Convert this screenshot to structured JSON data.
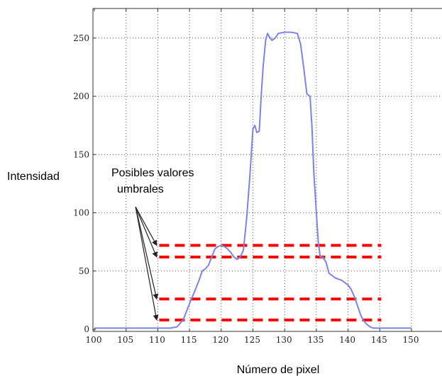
{
  "chart_data": {
    "type": "line",
    "title": "",
    "xlabel": "Número de pixel",
    "ylabel": "Intensidad",
    "xlim": [
      100,
      150
    ],
    "ylim": [
      0,
      260
    ],
    "xticks": [
      100,
      105,
      110,
      115,
      120,
      125,
      130,
      135,
      140,
      145,
      150
    ],
    "xtick_labels": [
      "100",
      "105",
      "110",
      "115",
      "120",
      "125",
      "130",
      "135",
      "140",
      "145",
      "150"
    ],
    "yticks": [
      0,
      50,
      100,
      150,
      200,
      250
    ],
    "ytick_labels": [
      "0",
      "50",
      "100",
      "150",
      "200",
      "250"
    ],
    "grid": true,
    "series": [
      {
        "color": "#7b83e8",
        "x": [
          100,
          108,
          109,
          110,
          111,
          112,
          113,
          114,
          115,
          116,
          116.5,
          117,
          117.5,
          118,
          118.5,
          119,
          119.5,
          120,
          120.5,
          121,
          121.5,
          122,
          122.5,
          123,
          123.5,
          124,
          124.5,
          125,
          125.3,
          125.6,
          126,
          126.3,
          126.6,
          127,
          127.3,
          127.6,
          128,
          128.5,
          129,
          130,
          131,
          132,
          132.5,
          133,
          133.5,
          134,
          134.3,
          134.6,
          135,
          135.3,
          135.6,
          136,
          136.5,
          137,
          138,
          139,
          140,
          140.5,
          141,
          141.5,
          142,
          142.5,
          143,
          143.5,
          144,
          145,
          150
        ],
        "y": [
          1,
          1,
          1,
          1,
          1,
          1,
          2,
          8,
          22,
          35,
          42,
          50,
          52,
          55,
          62,
          69,
          71,
          72,
          71,
          69,
          66,
          62,
          60,
          62,
          68,
          95,
          130,
          172,
          175,
          169,
          170,
          200,
          225,
          248,
          254,
          251,
          248,
          250,
          254,
          255,
          255,
          254,
          245,
          225,
          202,
          200,
          175,
          135,
          100,
          75,
          62,
          62,
          58,
          48,
          44,
          42,
          38,
          34,
          28,
          20,
          12,
          7,
          4,
          2,
          1,
          1,
          1
        ]
      }
    ],
    "threshold_lines": [
      {
        "y": 72,
        "x_from": 110,
        "x_to": 145,
        "color": "#ff0000",
        "style": "dashed"
      },
      {
        "y": 62,
        "x_from": 110,
        "x_to": 145,
        "color": "#ff0000",
        "style": "dashed"
      },
      {
        "y": 26,
        "x_from": 110,
        "x_to": 145,
        "color": "#ff0000",
        "style": "dashed"
      },
      {
        "y": 8,
        "x_from": 110,
        "x_to": 145,
        "color": "#ff0000",
        "style": "dashed"
      }
    ],
    "annotation": {
      "text_lines": [
        "Posibles valores",
        "umbrales"
      ],
      "arrow_from": [
        106.5,
        105
      ],
      "arrow_targets": [
        [
          110.5,
          72
        ],
        [
          110.5,
          62
        ],
        [
          110.5,
          26
        ],
        [
          110.5,
          8
        ]
      ]
    }
  }
}
